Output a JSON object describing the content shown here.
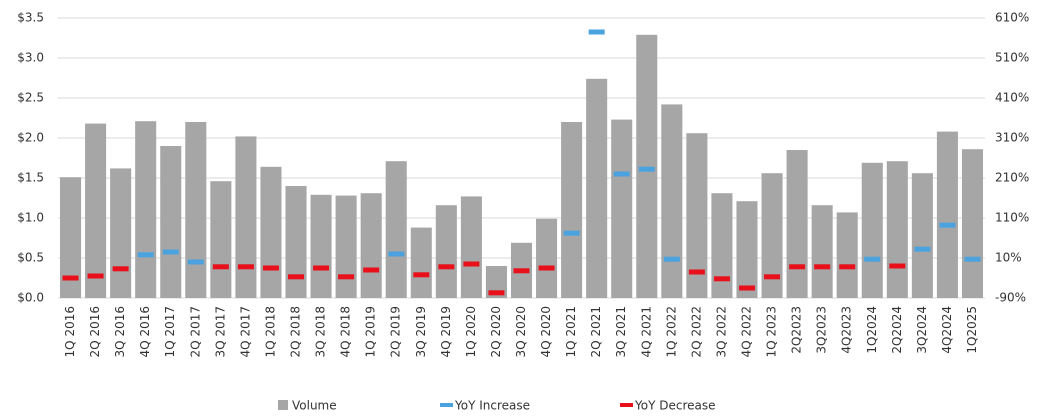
{
  "chart_data": {
    "type": "bar",
    "categories": [
      "1Q 2016",
      "2Q 2016",
      "3Q 2016",
      "4Q 2016",
      "1Q 2017",
      "2Q 2017",
      "3Q 2017",
      "4Q 2017",
      "1Q 2018",
      "2Q 2018",
      "3Q 2018",
      "4Q 2018",
      "1Q 2019",
      "2Q 2019",
      "3Q 2019",
      "4Q 2019",
      "1Q 2020",
      "2Q 2020",
      "3Q 2020",
      "4Q 2020",
      "1Q 2021",
      "2Q 2021",
      "3Q 2021",
      "4Q 2021",
      "1Q 2022",
      "2Q 2022",
      "3Q 2022",
      "4Q 2022",
      "1Q 2023",
      "2Q2023",
      "3Q2023",
      "4Q2023",
      "1Q2024",
      "2Q2024",
      "3Q2024",
      "4Q2024",
      "1Q2025"
    ],
    "series": [
      {
        "name": "Volume",
        "color": "#a6a6a6",
        "values": [
          1.51,
          2.18,
          1.62,
          2.21,
          1.9,
          2.2,
          1.46,
          2.02,
          1.64,
          1.4,
          1.29,
          1.28,
          1.31,
          1.71,
          0.88,
          1.16,
          1.27,
          0.4,
          0.69,
          0.99,
          2.2,
          2.74,
          2.23,
          3.29,
          2.42,
          2.06,
          1.31,
          1.21,
          1.56,
          1.85,
          1.16,
          1.07,
          1.69,
          1.71,
          1.56,
          2.08,
          1.86
        ]
      },
      {
        "name": "YoY Increase",
        "color": "#4aa3df",
        "axis": "y2",
        "values": [
          null,
          null,
          null,
          18,
          25,
          0,
          null,
          null,
          null,
          null,
          null,
          null,
          null,
          20,
          null,
          null,
          null,
          null,
          null,
          null,
          72,
          575,
          220,
          232,
          7,
          null,
          null,
          null,
          null,
          null,
          null,
          null,
          7,
          null,
          32,
          92,
          7
        ]
      },
      {
        "name": "YoY Decrease",
        "color": "#e8101a",
        "axis": "y2",
        "values": [
          -40,
          -35,
          -17,
          null,
          null,
          null,
          -12,
          -12,
          -15,
          -37,
          -15,
          -37,
          -20,
          null,
          -32,
          -12,
          -5,
          -77,
          -22,
          -15,
          null,
          null,
          null,
          null,
          null,
          -25,
          -42,
          -65,
          -37,
          -12,
          -12,
          -12,
          null,
          -10,
          null,
          null,
          null
        ]
      }
    ],
    "ylim": [
      0,
      3.5
    ],
    "yticks": [
      {
        "value": 0,
        "label": "$0.0"
      },
      {
        "value": 0.5,
        "label": "$0.5"
      },
      {
        "value": 1,
        "label": "$1.0"
      },
      {
        "value": 1.5,
        "label": "$1.5"
      },
      {
        "value": 2,
        "label": "$2.0"
      },
      {
        "value": 2.5,
        "label": "$2.5"
      },
      {
        "value": 3,
        "label": "$3.0"
      },
      {
        "value": 3.5,
        "label": "$3.5"
      }
    ],
    "y2lim": [
      -90,
      610
    ],
    "y2ticks": [
      {
        "value": -90,
        "label": "-90%"
      },
      {
        "value": 10,
        "label": "10%"
      },
      {
        "value": 110,
        "label": "110%"
      },
      {
        "value": 210,
        "label": "210%"
      },
      {
        "value": 310,
        "label": "310%"
      },
      {
        "value": 410,
        "label": "410%"
      },
      {
        "value": 510,
        "label": "510%"
      },
      {
        "value": 610,
        "label": "610%"
      }
    ],
    "grid": true
  }
}
